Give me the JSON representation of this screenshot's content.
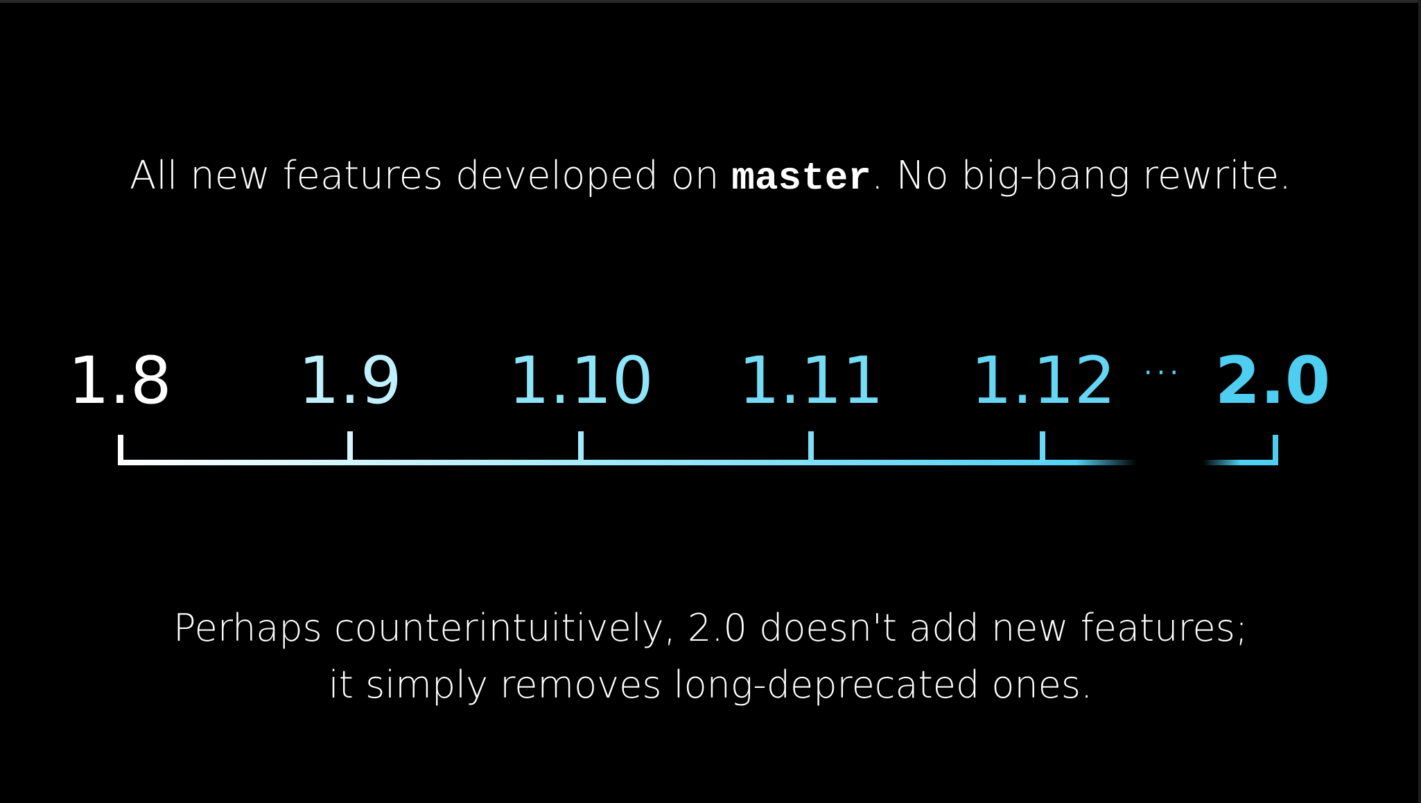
{
  "headline": {
    "before": "All new features developed on ",
    "code": "master",
    "after": ". No big-bang rewrite."
  },
  "timeline": {
    "versions": [
      {
        "label": "1.8",
        "color": "#ffffff",
        "bold": false
      },
      {
        "label": "1.9",
        "color": "#bff0fb",
        "bold": false
      },
      {
        "label": "1.10",
        "color": "#8ee4f8",
        "bold": false
      },
      {
        "label": "1.11",
        "color": "#75dcf6",
        "bold": false
      },
      {
        "label": "1.12",
        "color": "#65d6f4",
        "bold": false
      },
      {
        "label": "2.0",
        "color": "#4ecff2",
        "bold": true
      }
    ],
    "ellipsis": "···",
    "line_start_color": "#ffffff",
    "line_end_color": "#4ecff2"
  },
  "caption": {
    "line1": "Perhaps counterintuitively, 2.0 doesn't add new features;",
    "line2": "it simply removes long-deprecated ones."
  }
}
